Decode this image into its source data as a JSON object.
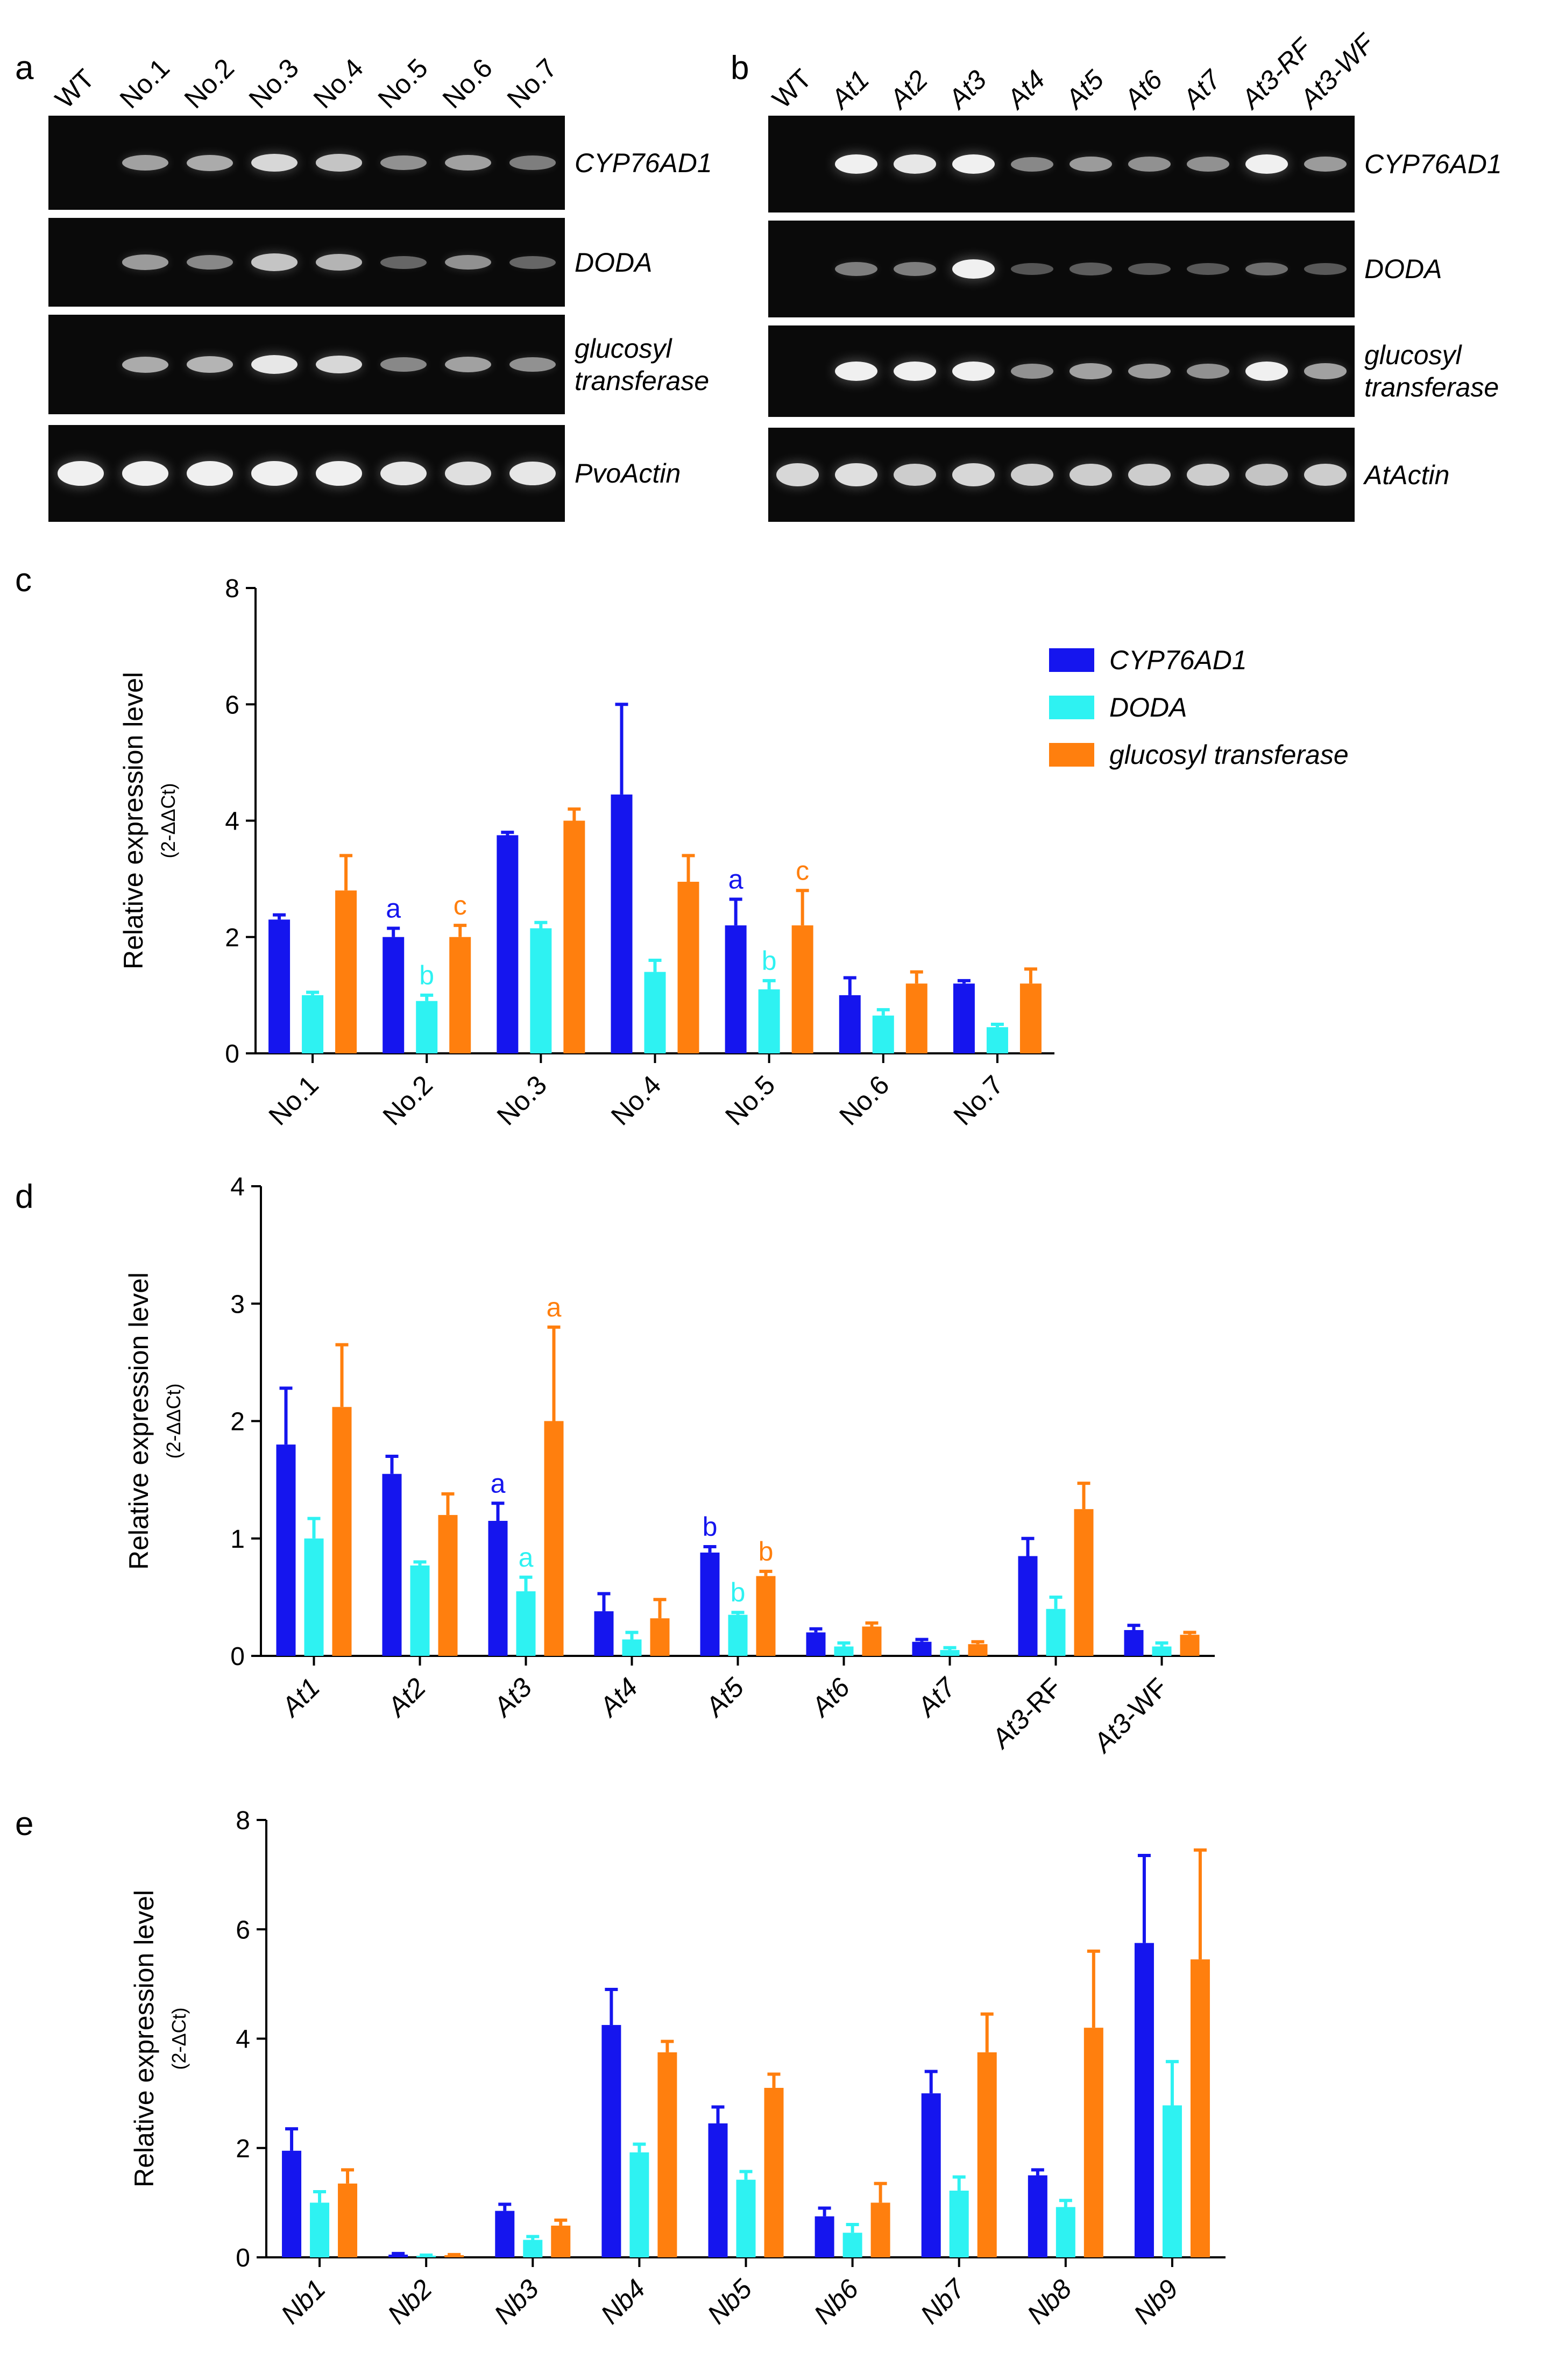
{
  "panels": {
    "a": "a",
    "b": "b",
    "c": "c",
    "d": "d",
    "e": "e"
  },
  "colors": {
    "cyp": "#1515ee",
    "doda": "#2ef2f2",
    "gt": "#ff7f0e",
    "gel_bg": "#0a0a0a",
    "band": "#f0f0f0"
  },
  "gel_a": {
    "lanes": [
      "WT",
      "No.1",
      "No.2",
      "No.3",
      "No.4",
      "No.5",
      "No.6",
      "No.7"
    ],
    "genes": [
      "CYP76AD1",
      "DODA",
      "glucosyl\ntransferase",
      "PvoActin"
    ],
    "intensity": [
      [
        0,
        0.55,
        0.6,
        0.85,
        0.75,
        0.45,
        0.55,
        0.35
      ],
      [
        0,
        0.5,
        0.4,
        0.75,
        0.65,
        0.2,
        0.45,
        0.2
      ],
      [
        0,
        0.6,
        0.65,
        0.95,
        0.85,
        0.4,
        0.55,
        0.45
      ],
      [
        1,
        1,
        1,
        1,
        1,
        0.95,
        0.9,
        0.95
      ]
    ]
  },
  "gel_b": {
    "lanes": [
      "WT",
      "At1",
      "At2",
      "At3",
      "At4",
      "At5",
      "At6",
      "At7",
      "At3-RF",
      "At3-WF"
    ],
    "genes": [
      "CYP76AD1",
      "DODA",
      "glucosyl\ntransferase",
      "AtActin"
    ],
    "intensity": [
      [
        0,
        1,
        0.95,
        1,
        0.4,
        0.5,
        0.45,
        0.45,
        1,
        0.5
      ],
      [
        0,
        0.35,
        0.35,
        1,
        0.1,
        0.15,
        0.12,
        0.12,
        0.25,
        0.12
      ],
      [
        0,
        1,
        1,
        1,
        0.45,
        0.55,
        0.5,
        0.45,
        1,
        0.55
      ],
      [
        0.85,
        0.9,
        0.8,
        0.85,
        0.8,
        0.8,
        0.8,
        0.8,
        0.75,
        0.8
      ]
    ]
  },
  "chart_data": [
    {
      "panel": "c",
      "type": "bar",
      "ylabel": "Relative expression level",
      "ylabel_sub": "(2-ΔΔCt)",
      "ylim": [
        0,
        8
      ],
      "yticks": [
        0,
        2,
        4,
        6,
        8
      ],
      "categories": [
        "No.1",
        "No.2",
        "No.3",
        "No.4",
        "No.5",
        "No.6",
        "No.7"
      ],
      "series": [
        {
          "name": "CYP76AD1",
          "values": [
            2.3,
            2.0,
            3.75,
            4.45,
            2.2,
            1.0,
            1.2
          ],
          "errors": [
            0.08,
            0.15,
            0.05,
            1.55,
            0.45,
            0.3,
            0.05
          ]
        },
        {
          "name": "DODA",
          "values": [
            1.0,
            0.9,
            2.15,
            1.4,
            1.1,
            0.65,
            0.45
          ],
          "errors": [
            0.05,
            0.1,
            0.1,
            0.2,
            0.15,
            0.1,
            0.05
          ]
        },
        {
          "name": "glucosyl transferase",
          "values": [
            2.8,
            2.0,
            4.0,
            2.95,
            2.2,
            1.2,
            1.2
          ],
          "errors": [
            0.6,
            0.2,
            0.2,
            0.45,
            0.6,
            0.2,
            0.25
          ]
        }
      ],
      "annotations": [
        {
          "category": "No.2",
          "series": 0,
          "label": "a"
        },
        {
          "category": "No.2",
          "series": 1,
          "label": "b"
        },
        {
          "category": "No.2",
          "series": 2,
          "label": "c"
        },
        {
          "category": "No.5",
          "series": 0,
          "label": "a"
        },
        {
          "category": "No.5",
          "series": 1,
          "label": "b"
        },
        {
          "category": "No.5",
          "series": 2,
          "label": "c"
        }
      ],
      "legend": [
        "CYP76AD1",
        "DODA",
        "glucosyl transferase"
      ],
      "legend_position": "top-right"
    },
    {
      "panel": "d",
      "type": "bar",
      "ylabel": "Relative expression level",
      "ylabel_sub": "(2-ΔΔCt)",
      "ylim": [
        0,
        4
      ],
      "yticks": [
        0,
        1,
        2,
        3,
        4
      ],
      "categories": [
        "At1",
        "At2",
        "At3",
        "At4",
        "At5",
        "At6",
        "At7",
        "At3-RF",
        "At3-WF"
      ],
      "series": [
        {
          "name": "CYP76AD1",
          "values": [
            1.8,
            1.55,
            1.15,
            0.38,
            0.88,
            0.2,
            0.12,
            0.85,
            0.22
          ],
          "errors": [
            0.48,
            0.15,
            0.15,
            0.15,
            0.05,
            0.03,
            0.02,
            0.15,
            0.04
          ]
        },
        {
          "name": "DODA",
          "values": [
            1.0,
            0.77,
            0.55,
            0.14,
            0.35,
            0.08,
            0.05,
            0.4,
            0.08
          ],
          "errors": [
            0.17,
            0.03,
            0.12,
            0.06,
            0.02,
            0.03,
            0.02,
            0.1,
            0.03
          ]
        },
        {
          "name": "glucosyl transferase",
          "values": [
            2.12,
            1.2,
            2.0,
            0.32,
            0.68,
            0.25,
            0.1,
            1.25,
            0.18
          ],
          "errors": [
            0.53,
            0.18,
            0.8,
            0.16,
            0.04,
            0.03,
            0.02,
            0.22,
            0.02
          ]
        }
      ],
      "annotations": [
        {
          "category": "At3",
          "series": 0,
          "label": "a"
        },
        {
          "category": "At3",
          "series": 1,
          "label": "a"
        },
        {
          "category": "At3",
          "series": 2,
          "label": "a"
        },
        {
          "category": "At5",
          "series": 0,
          "label": "b"
        },
        {
          "category": "At5",
          "series": 1,
          "label": "b"
        },
        {
          "category": "At5",
          "series": 2,
          "label": "b"
        }
      ]
    },
    {
      "panel": "e",
      "type": "bar",
      "ylabel": "Relative expression level",
      "ylabel_sub": "(2-ΔCt)",
      "ylim": [
        0,
        8
      ],
      "yticks": [
        0,
        2,
        4,
        6,
        8
      ],
      "categories": [
        "Nb1",
        "Nb2",
        "Nb3",
        "Nb4",
        "Nb5",
        "Nb6",
        "Nb7",
        "Nb8",
        "Nb9"
      ],
      "series": [
        {
          "name": "CYP76AD1",
          "values": [
            1.95,
            0.05,
            0.85,
            4.25,
            2.45,
            0.75,
            3.0,
            1.5,
            5.75
          ],
          "errors": [
            0.4,
            0.02,
            0.12,
            0.65,
            0.3,
            0.15,
            0.4,
            0.1,
            1.6
          ]
        },
        {
          "name": "DODA",
          "values": [
            1.0,
            0.03,
            0.32,
            1.92,
            1.42,
            0.45,
            1.22,
            0.92,
            2.78
          ],
          "errors": [
            0.2,
            0.01,
            0.06,
            0.15,
            0.15,
            0.15,
            0.25,
            0.12,
            0.8
          ]
        },
        {
          "name": "glucosyl transferase",
          "values": [
            1.35,
            0.04,
            0.58,
            3.75,
            3.1,
            1.0,
            3.75,
            4.2,
            5.45
          ],
          "errors": [
            0.25,
            0.01,
            0.1,
            0.2,
            0.25,
            0.35,
            0.7,
            1.4,
            2.0
          ]
        }
      ]
    }
  ]
}
